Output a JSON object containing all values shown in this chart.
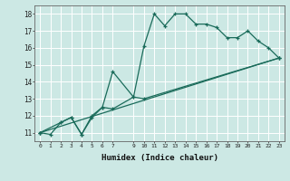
{
  "xlabel": "Humidex (Indice chaleur)",
  "bg_color": "#cce8e4",
  "line_color": "#1a6b5a",
  "grid_color": "#ffffff",
  "xlim": [
    -0.5,
    23.5
  ],
  "ylim": [
    10.5,
    18.5
  ],
  "xticks": [
    0,
    1,
    2,
    3,
    4,
    5,
    6,
    7,
    9,
    10,
    11,
    12,
    13,
    14,
    15,
    16,
    17,
    18,
    19,
    20,
    21,
    22,
    23
  ],
  "yticks": [
    11,
    12,
    13,
    14,
    15,
    16,
    17,
    18
  ],
  "line1_x": [
    0,
    1,
    2,
    3,
    4,
    5,
    6,
    7,
    9,
    10,
    11,
    12,
    13,
    14,
    15,
    16,
    17,
    18,
    19,
    20,
    21,
    22,
    23
  ],
  "line1_y": [
    11.0,
    10.9,
    11.6,
    11.9,
    10.9,
    11.9,
    12.5,
    14.6,
    13.1,
    16.1,
    18.0,
    17.3,
    18.0,
    18.0,
    17.4,
    17.4,
    17.2,
    16.6,
    16.6,
    17.0,
    16.4,
    16.0,
    15.4
  ],
  "line2_x": [
    0,
    2,
    3,
    4,
    5,
    6,
    7,
    9,
    10,
    23
  ],
  "line2_y": [
    11.0,
    11.6,
    11.9,
    10.9,
    12.0,
    12.5,
    12.4,
    13.1,
    13.0,
    15.4
  ],
  "line3_x": [
    0,
    23
  ],
  "line3_y": [
    11.0,
    15.4
  ]
}
